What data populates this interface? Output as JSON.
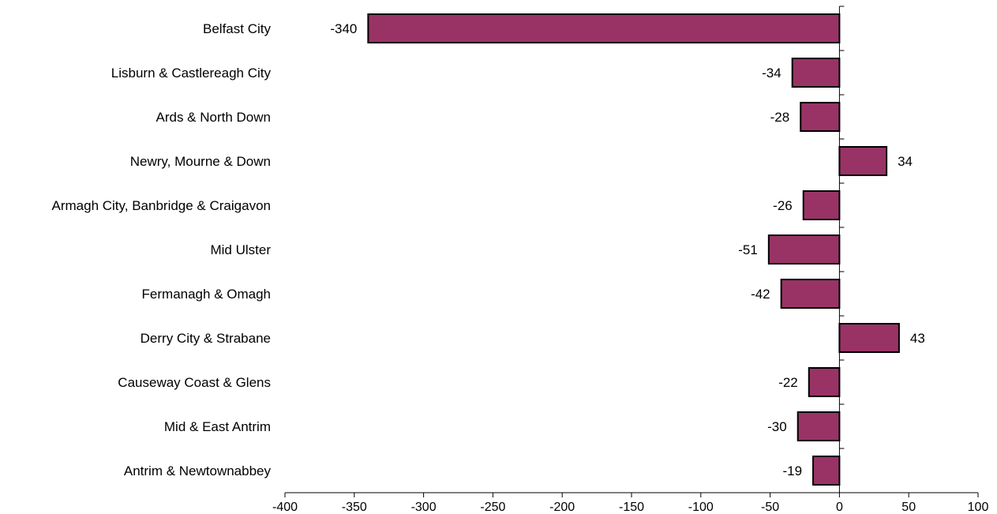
{
  "chart_data": {
    "type": "bar",
    "orientation": "horizontal",
    "categories": [
      "Belfast City",
      "Lisburn & Castlereagh City",
      "Ards & North Down",
      "Newry, Mourne & Down",
      "Armagh City, Banbridge & Craigavon",
      "Mid Ulster",
      "Fermanagh & Omagh",
      "Derry City & Strabane",
      "Causeway Coast & Glens",
      "Mid & East Antrim",
      "Antrim & Newtownabbey"
    ],
    "values": [
      -340,
      -34,
      -28,
      34,
      -26,
      -51,
      -42,
      43,
      -22,
      -30,
      -19
    ],
    "data_labels": [
      "-340",
      "-34",
      "-28",
      "34",
      "-26",
      "-51",
      "-42",
      "43",
      "-22",
      "-30",
      "-19"
    ],
    "xlim": [
      -400,
      100
    ],
    "xticks": [
      -400,
      -350,
      -300,
      -250,
      -200,
      -150,
      -100,
      -50,
      0,
      50,
      100
    ],
    "xtick_labels": [
      "-400",
      "-350",
      "-300",
      "-250",
      "-200",
      "-150",
      "-100",
      "-50",
      "0",
      "50",
      "100"
    ],
    "title": "",
    "xlabel": "",
    "ylabel": "",
    "grid": false,
    "legend": "none",
    "bar_color": "#993366",
    "bar_edge_color": "#000000"
  }
}
